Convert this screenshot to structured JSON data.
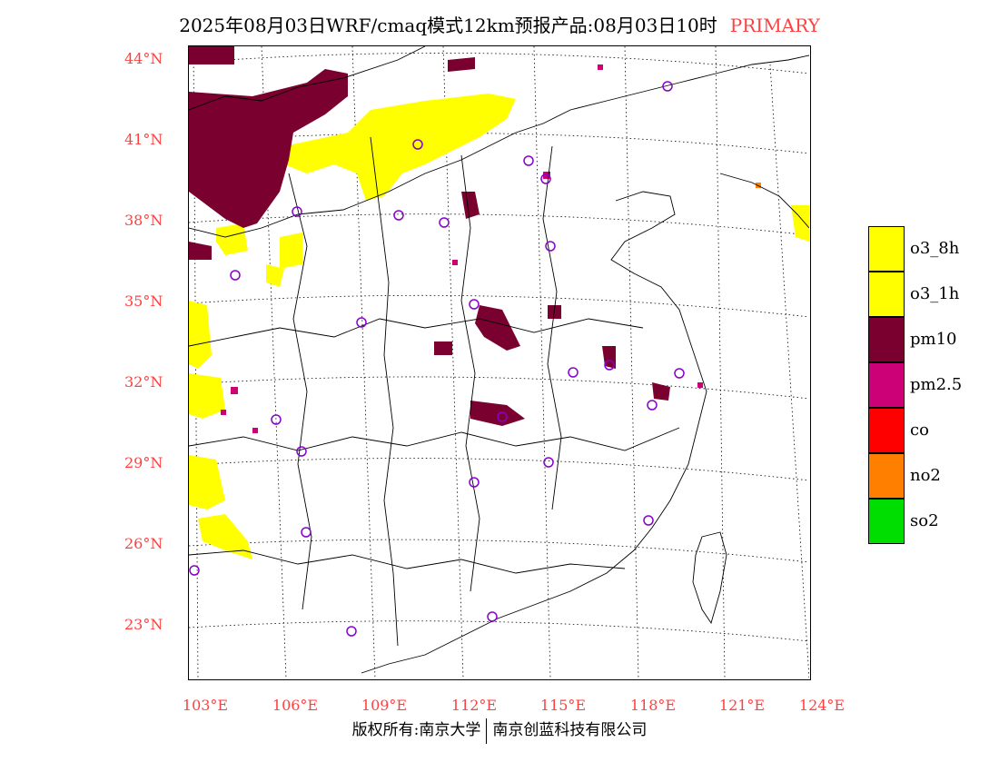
{
  "header": {
    "title": "2025年08月03日WRF/cmaq模式12km预报产品:08月03日10时",
    "mode": "PRIMARY"
  },
  "map": {
    "lat_labels": [
      "44°N",
      "41°N",
      "38°N",
      "35°N",
      "32°N",
      "29°N",
      "26°N",
      "23°N"
    ],
    "lon_labels": [
      "103°E",
      "106°E",
      "109°E",
      "112°E",
      "115°E",
      "118°E",
      "121°E",
      "124°E"
    ],
    "background_color": "#ffffff",
    "boundary_color": "#000000",
    "station_marker_color": "#8800cc"
  },
  "legend": {
    "items": [
      {
        "label": "o3_8h",
        "color": "#ffff00"
      },
      {
        "label": "o3_1h",
        "color": "#ffff00"
      },
      {
        "label": "pm10",
        "color": "#7a0030"
      },
      {
        "label": "pm2.5",
        "color": "#cc0077"
      },
      {
        "label": "co",
        "color": "#ff0000"
      },
      {
        "label": "no2",
        "color": "#ff8000"
      },
      {
        "label": "so2",
        "color": "#00dd00"
      }
    ]
  },
  "footer": {
    "left": "版权所有:南京大学",
    "right": "南京创蓝科技有限公司"
  }
}
